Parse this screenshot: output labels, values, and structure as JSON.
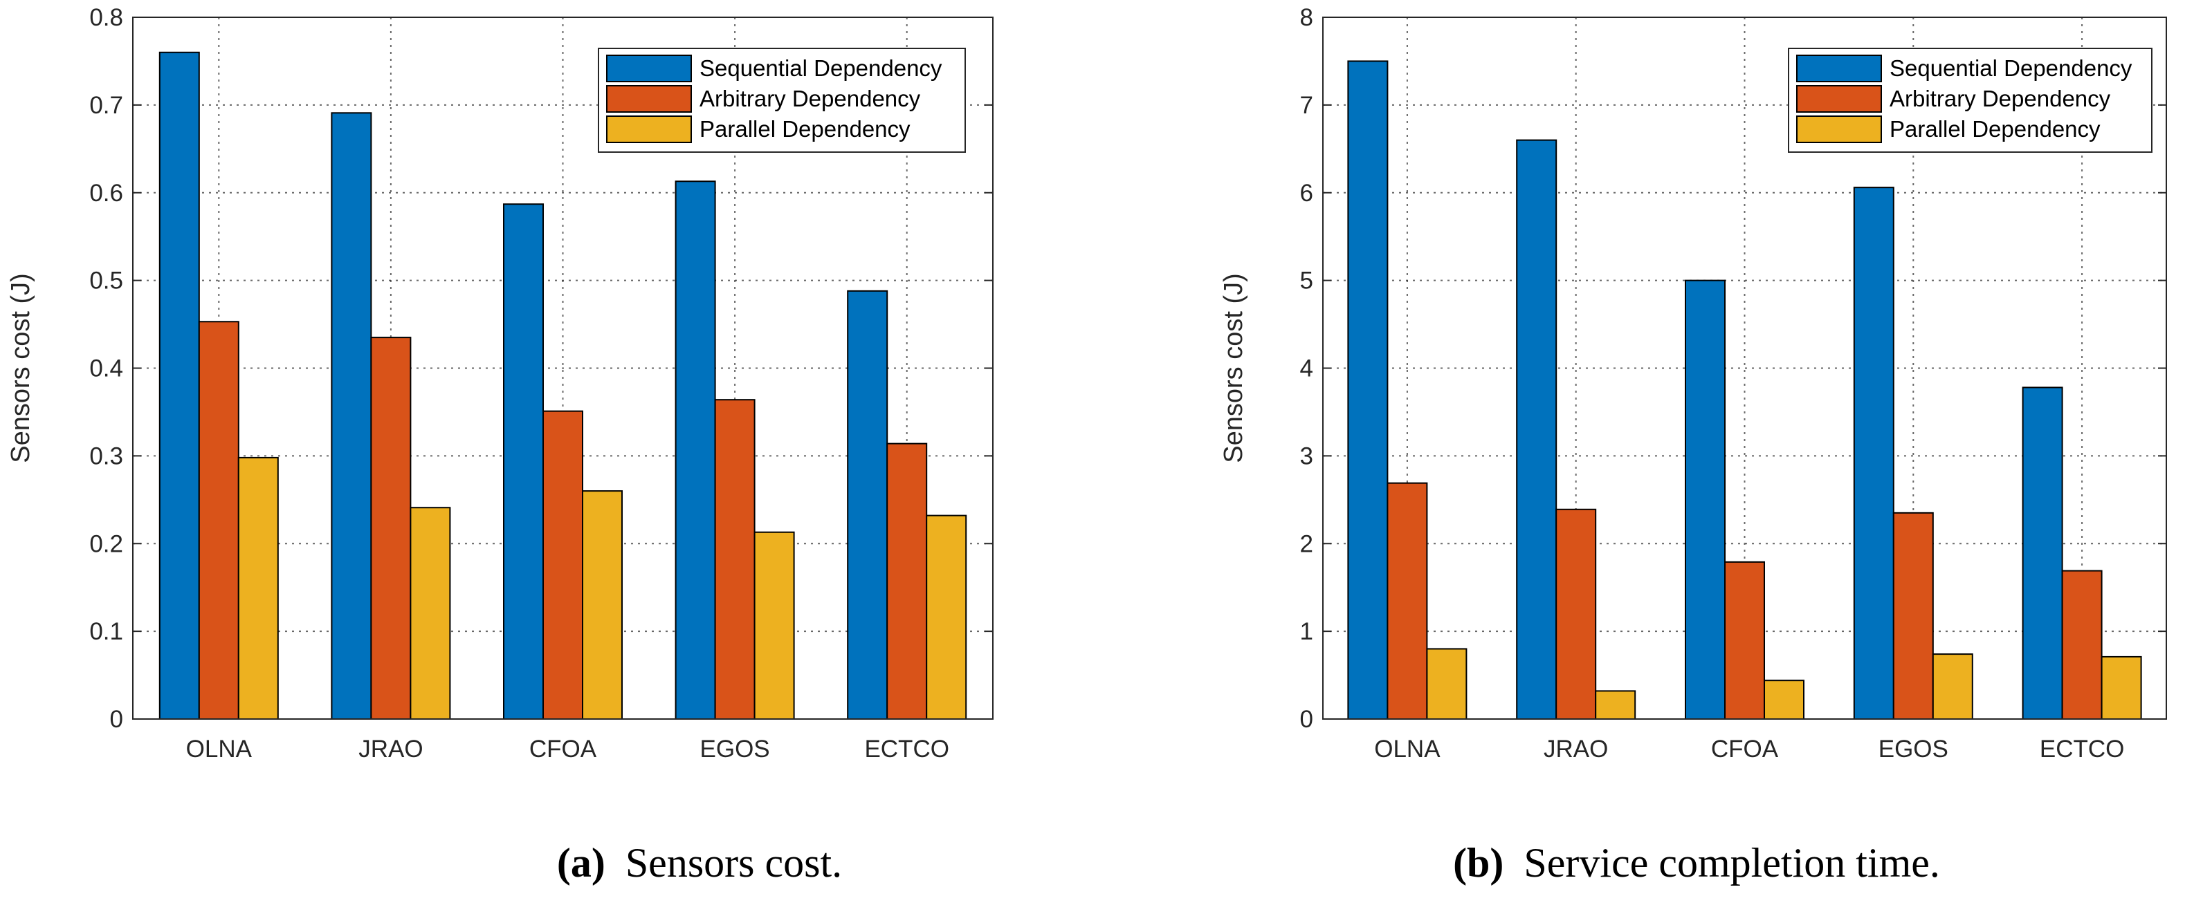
{
  "colors": {
    "Sequential Dependency": "#0072BD",
    "Arbitrary Dependency": "#D95319",
    "Parallel Dependency": "#EDB120"
  },
  "chart_data": [
    {
      "type": "bar",
      "panel": "a",
      "caption_label": "(a)",
      "caption_text": "Sensors cost.",
      "categories": [
        "OLNA",
        "JRAO",
        "CFOA",
        "EGOS",
        "ECTCO"
      ],
      "series": [
        {
          "name": "Sequential Dependency",
          "values": [
            0.76,
            0.691,
            0.587,
            0.613,
            0.488
          ]
        },
        {
          "name": "Arbitrary Dependency",
          "values": [
            0.453,
            0.435,
            0.351,
            0.364,
            0.314
          ]
        },
        {
          "name": "Parallel Dependency",
          "values": [
            0.298,
            0.241,
            0.26,
            0.213,
            0.232
          ]
        }
      ],
      "ylabel": "Sensors cost (J)",
      "xlabel": "",
      "ylim": [
        0,
        0.8
      ],
      "yticks": [
        "0",
        "0.1",
        "0.2",
        "0.3",
        "0.4",
        "0.5",
        "0.6",
        "0.7",
        "0.8"
      ],
      "grid": true,
      "legend": "top-right"
    },
    {
      "type": "bar",
      "panel": "b",
      "caption_label": "(b)",
      "caption_text": "Service completion time.",
      "categories": [
        "OLNA",
        "JRAO",
        "CFOA",
        "EGOS",
        "ECTCO"
      ],
      "series": [
        {
          "name": "Sequential Dependency",
          "values": [
            7.5,
            6.6,
            5.0,
            6.06,
            3.78
          ]
        },
        {
          "name": "Arbitrary Dependency",
          "values": [
            2.69,
            2.39,
            1.79,
            2.35,
            1.69
          ]
        },
        {
          "name": "Parallel Dependency",
          "values": [
            0.8,
            0.32,
            0.44,
            0.74,
            0.71
          ]
        }
      ],
      "ylabel": "Sensors cost (J)",
      "xlabel": "",
      "ylim": [
        0,
        8
      ],
      "yticks": [
        "0",
        "1",
        "2",
        "3",
        "4",
        "5",
        "6",
        "7",
        "8"
      ],
      "grid": true,
      "legend": "top-right"
    }
  ]
}
